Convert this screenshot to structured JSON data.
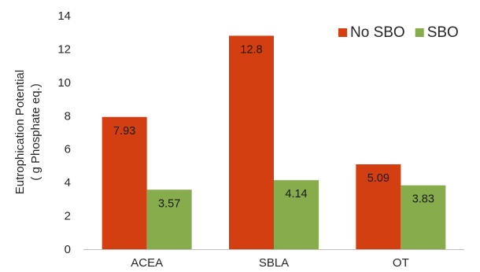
{
  "chart_data": {
    "type": "bar",
    "title": "",
    "xlabel": "",
    "ylabel_lines": [
      "Eutrophication Potential",
      "( g Phosphate eq.)"
    ],
    "ylim": [
      0,
      14
    ],
    "yticks": [
      "0",
      "2",
      "4",
      "6",
      "8",
      "10",
      "12",
      "14"
    ],
    "categories": [
      "ACEA",
      "SBLA",
      "OT"
    ],
    "series": [
      {
        "name": "No SBO",
        "color": "#d43f12",
        "values": [
          7.93,
          12.8,
          5.09
        ],
        "labels": [
          "7.93",
          "12.8",
          "5.09"
        ]
      },
      {
        "name": "SBO",
        "color": "#86ac4c",
        "values": [
          3.57,
          4.14,
          3.83
        ],
        "labels": [
          "3.57",
          "4.14",
          "3.83"
        ]
      }
    ],
    "grid": false,
    "legend_position": "top-right"
  }
}
